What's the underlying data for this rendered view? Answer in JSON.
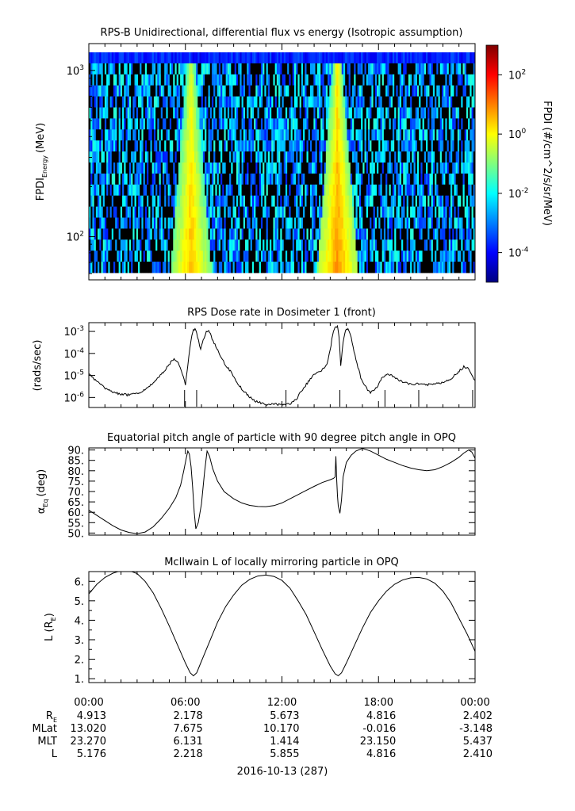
{
  "chart_data": [
    {
      "type": "heatmap",
      "title": "RPS-B  Unidirectional, differential flux vs energy (Isotropic assumption)",
      "ylabel": "FPDI",
      "ylabel_sub": "Energy",
      "ylabel_unit": "(MeV)",
      "yscale": "log",
      "ylim": [
        55,
        1450
      ],
      "xlim_hours": [
        0,
        24
      ],
      "ytick_labels": [
        {
          "base": "10",
          "exp": "3"
        },
        {
          "base": "10",
          "exp": "2"
        }
      ],
      "ytick_values": [
        1000,
        100
      ],
      "colorbar": {
        "label": "FPDI (#/cm^2/s/sr/MeV)",
        "scale": "log",
        "range_log10": [
          -5,
          3
        ],
        "ticks": [
          {
            "base": "10",
            "exp": "2"
          },
          {
            "base": "10",
            "exp": "0"
          },
          {
            "base": "10",
            "exp": "-2"
          },
          {
            "base": "10",
            "exp": "-4"
          }
        ],
        "tick_log10": [
          2,
          0,
          -2,
          -4
        ],
        "colors": [
          "#00007f",
          "#0000ff",
          "#007fff",
          "#00ffff",
          "#7fff7f",
          "#ffff00",
          "#ff7f00",
          "#ff0000",
          "#7f0000"
        ]
      },
      "belt_passes": [
        {
          "center_hour": 6.35,
          "peak_log10": 0.6
        },
        {
          "center_hour": 15.45,
          "peak_log10": 0.9
        }
      ],
      "background_log10": -3.5
    },
    {
      "type": "line",
      "title": "RPS  Dose rate in Dosimeter 1 (front)",
      "ylabel": "(rads/sec)",
      "yscale": "log",
      "ylim": [
        3.5e-07,
        0.0025
      ],
      "ytick_labels": [
        {
          "base": "10",
          "exp": "-3"
        },
        {
          "base": "10",
          "exp": "-4"
        },
        {
          "base": "10",
          "exp": "-5"
        },
        {
          "base": "10",
          "exp": "-6"
        }
      ],
      "ytick_values": [
        0.001,
        0.0001,
        1e-05,
        1e-06
      ],
      "series": [
        {
          "x": [
            0,
            0.4,
            0.9,
            1.4,
            2.0,
            2.5,
            3.0,
            3.6,
            4.2,
            4.8,
            5.1,
            5.3,
            5.55,
            5.75,
            6.0,
            6.15,
            6.35,
            6.5,
            6.6,
            6.75,
            6.95,
            7.1,
            7.3,
            7.45,
            7.6,
            7.9,
            8.3,
            8.8,
            9.2,
            9.6,
            10.0,
            10.5,
            11.0,
            11.5,
            12.0,
            12.5,
            12.9,
            13.1,
            13.4,
            13.7,
            14.0,
            14.4,
            14.8,
            15.0,
            15.15,
            15.3,
            15.45,
            15.55,
            15.65,
            15.8,
            15.95,
            16.1,
            16.3,
            16.6,
            16.9,
            17.2,
            17.5,
            17.9,
            18.2,
            18.6,
            19.0,
            19.5,
            20.0,
            20.5,
            21.0,
            21.5,
            22.0,
            22.5,
            22.9,
            23.3,
            23.6,
            23.8,
            24.0
          ],
          "y": [
            1.1e-05,
            6e-06,
            3e-06,
            1.8e-06,
            1.4e-06,
            1.3e-06,
            1.5e-06,
            2.5e-06,
            6e-06,
            2e-05,
            4e-05,
            6e-05,
            4e-05,
            1.5e-05,
            4e-06,
            3e-05,
            0.0004,
            0.0012,
            0.0013,
            0.0006,
            0.00015,
            0.0004,
            0.001,
            0.0011,
            0.0006,
            0.0002,
            5e-05,
            1.5e-05,
            5e-06,
            2e-06,
            1e-06,
            6e-07,
            5e-07,
            5e-07,
            4.5e-07,
            5e-07,
            8e-07,
            1.6e-06,
            3e-06,
            6e-06,
            1.1e-05,
            1.5e-05,
            3e-05,
            0.00015,
            0.0007,
            0.0015,
            0.0016,
            0.0006,
            3e-05,
            0.0003,
            0.0012,
            0.0013,
            0.0005,
            5e-05,
            8e-06,
            3e-06,
            1.6e-06,
            3e-06,
            7e-06,
            1.2e-05,
            8e-06,
            5e-06,
            4e-06,
            4e-06,
            3.8e-06,
            4e-06,
            5e-06,
            7e-06,
            1.3e-05,
            2.5e-05,
            2e-05,
            1e-05,
            6e-06
          ],
          "dips_hours": [
            5.95,
            6.7,
            12.25,
            15.6,
            18.4,
            20.5,
            23.85
          ]
        }
      ]
    },
    {
      "type": "line",
      "title": "Equatorial pitch angle of particle with 90 degree pitch angle in OPQ",
      "ylabel": "α",
      "ylabel_sub": "Eq",
      "ylabel_unit": "(deg)",
      "ylim": [
        49,
        91
      ],
      "ytick_labels": [
        "90.",
        "85.",
        "80.",
        "75.",
        "70.",
        "65.",
        "60.",
        "55.",
        "50."
      ],
      "ytick_values": [
        90,
        85,
        80,
        75,
        70,
        65,
        60,
        55,
        50
      ],
      "series": [
        {
          "x": [
            0,
            0.5,
            1.0,
            1.5,
            2.0,
            2.5,
            3.0,
            3.5,
            4.0,
            4.5,
            5.0,
            5.4,
            5.7,
            5.9,
            6.05,
            6.15,
            6.25,
            6.35,
            6.45,
            6.55,
            6.65,
            6.8,
            7.0,
            7.2,
            7.35,
            7.5,
            7.7,
            8.0,
            8.4,
            9.0,
            9.5,
            10.0,
            10.5,
            11.0,
            11.5,
            12.0,
            12.5,
            13.0,
            13.5,
            14.0,
            14.5,
            15.0,
            15.2,
            15.3,
            15.35,
            15.4,
            15.45,
            15.5,
            15.6,
            15.7,
            15.8,
            16.0,
            16.3,
            16.6,
            17.0,
            17.5,
            18.0,
            18.5,
            19.0,
            19.5,
            20.0,
            20.5,
            21.0,
            21.5,
            22.0,
            22.5,
            23.0,
            23.3,
            23.6,
            23.8,
            24.0
          ],
          "y": [
            61,
            58.5,
            56,
            53.5,
            51.5,
            50.3,
            49.7,
            50.5,
            53,
            57,
            62,
            67,
            73,
            80,
            86,
            89.5,
            88,
            82,
            72,
            60,
            52,
            55,
            64,
            80,
            89.5,
            87,
            81,
            75,
            70,
            66.5,
            64.5,
            63.3,
            62.8,
            62.7,
            63.2,
            64.5,
            66.5,
            68.5,
            70.5,
            72.5,
            74.3,
            75.7,
            76.3,
            77,
            87,
            76,
            68,
            63,
            59.5,
            66,
            77,
            84,
            87.5,
            89.5,
            90.8,
            89.5,
            87.5,
            85.5,
            84,
            82.5,
            81.3,
            80.5,
            80,
            80.5,
            82,
            84,
            86.5,
            88.5,
            90,
            89,
            86
          ]
        }
      ]
    },
    {
      "type": "line",
      "title": "McIlwain L of locally mirroring particle in OPQ",
      "ylabel": "L (R",
      "ylabel_sub": "E",
      "ylabel_unit": ")",
      "ylim": [
        0.8,
        6.5
      ],
      "ytick_labels": [
        "6.",
        "5.",
        "4.",
        "3.",
        "2.",
        "1."
      ],
      "ytick_values": [
        6,
        5,
        4,
        3,
        2,
        1
      ],
      "series": [
        {
          "x": [
            0,
            0.5,
            1.0,
            1.5,
            2.0,
            2.5,
            3.0,
            3.5,
            4.0,
            4.5,
            5.0,
            5.5,
            6.0,
            6.3,
            6.5,
            6.7,
            7.0,
            7.5,
            8.0,
            8.5,
            9.0,
            9.5,
            10.0,
            10.5,
            11.0,
            11.5,
            12.0,
            12.5,
            13.0,
            13.5,
            14.0,
            14.5,
            15.0,
            15.3,
            15.5,
            15.7,
            16.0,
            16.5,
            17.0,
            17.5,
            18.0,
            18.5,
            19.0,
            19.5,
            20.0,
            20.5,
            21.0,
            21.5,
            22.0,
            22.5,
            23.0,
            23.5,
            24.0
          ],
          "y": [
            5.35,
            5.85,
            6.2,
            6.42,
            6.55,
            6.55,
            6.4,
            6.0,
            5.4,
            4.6,
            3.7,
            2.75,
            1.8,
            1.3,
            1.15,
            1.3,
            1.9,
            2.9,
            3.9,
            4.7,
            5.3,
            5.8,
            6.1,
            6.27,
            6.32,
            6.25,
            6.05,
            5.65,
            5.0,
            4.3,
            3.4,
            2.5,
            1.65,
            1.25,
            1.15,
            1.3,
            1.8,
            2.7,
            3.6,
            4.4,
            5.0,
            5.5,
            5.85,
            6.07,
            6.18,
            6.2,
            6.12,
            5.9,
            5.5,
            4.9,
            4.1,
            3.3,
            2.4
          ]
        }
      ]
    }
  ],
  "x_axis": {
    "tick_labels": [
      "00:00",
      "06:00",
      "12:00",
      "18:00",
      "00:00"
    ],
    "tick_hours": [
      0,
      6,
      12,
      18,
      24
    ],
    "minor_step_hours": 1,
    "date_label": "2016-10-13 (287)"
  },
  "ephemeris": {
    "rows": [
      {
        "label": "R",
        "label_sub": "E",
        "values": [
          "4.913",
          "2.178",
          "5.673",
          "4.816",
          "2.402"
        ]
      },
      {
        "label": "MLat",
        "label_sub": "",
        "values": [
          "13.020",
          "7.675",
          "10.170",
          "-0.016",
          "-3.148"
        ]
      },
      {
        "label": "MLT",
        "label_sub": "",
        "values": [
          "23.270",
          "6.131",
          "1.414",
          "23.150",
          "5.437"
        ]
      },
      {
        "label": "L",
        "label_sub": "",
        "values": [
          "5.176",
          "2.218",
          "5.855",
          "4.816",
          "2.410"
        ]
      }
    ]
  }
}
